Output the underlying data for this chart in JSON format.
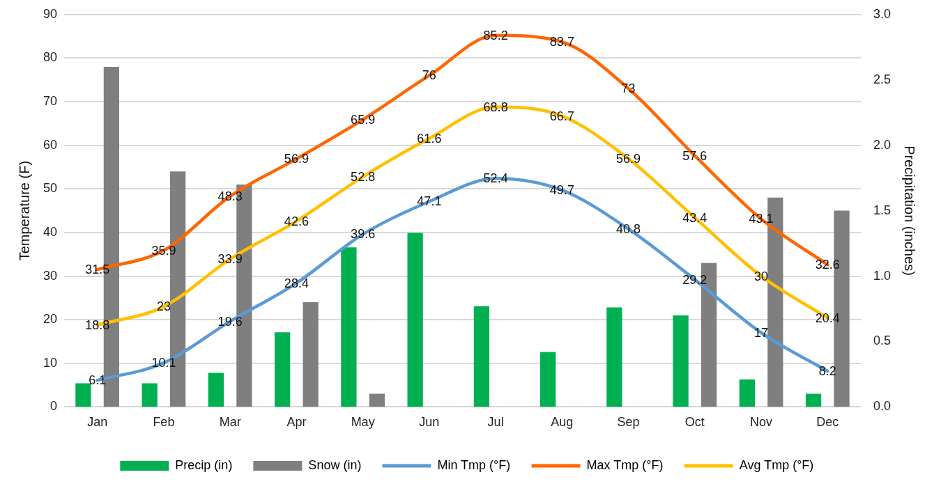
{
  "chart_data": {
    "type": "bar",
    "ylabel": "Temperature (F)",
    "y2label": "Precipitation (inches)",
    "categories": [
      "Jan",
      "Feb",
      "Mar",
      "Apr",
      "May",
      "Jun",
      "Jul",
      "Aug",
      "Sep",
      "Oct",
      "Nov",
      "Dec"
    ],
    "series": [
      {
        "name": "Precip (in)",
        "axis": "y2",
        "color": "#00b050",
        "values": [
          0.18,
          0.18,
          0.26,
          0.57,
          1.22,
          1.33,
          0.77,
          0.42,
          0.76,
          0.7,
          0.21,
          0.1
        ]
      },
      {
        "name": "Snow (in)",
        "axis": "y2",
        "color": "#7f7f7f",
        "values": [
          2.6,
          1.8,
          1.7,
          0.8,
          0.1,
          0,
          0,
          0,
          0,
          1.1,
          1.6,
          1.5
        ]
      },
      {
        "name": "Min Tmp (°F)",
        "type": "line",
        "axis": "y",
        "color": "#5b9bd5",
        "values": [
          6.1,
          10.1,
          19.6,
          28.4,
          39.6,
          47.1,
          52.4,
          49.7,
          40.8,
          29.2,
          17,
          8.2
        ],
        "value_labels": [
          "6.1",
          "10.1",
          "19.6",
          "28.4",
          "39.6",
          "47.1",
          "52.4",
          "49.7",
          "40.8",
          "29.2",
          "17",
          "8.2"
        ]
      },
      {
        "name": "Max Tmp (°F)",
        "type": "line",
        "axis": "y",
        "color": "#ff6600",
        "values": [
          31.5,
          35.9,
          48.3,
          56.9,
          65.9,
          76,
          85.2,
          83.7,
          73,
          57.6,
          43.1,
          32.6
        ],
        "value_labels": [
          "31.5",
          "35.9",
          "48.3",
          "56.9",
          "65.9",
          "76",
          "85.2",
          "83.7",
          "73",
          "57.6",
          "43.1",
          "32.6"
        ]
      },
      {
        "name": "Avg Tmp (°F)",
        "type": "line",
        "axis": "y",
        "color": "#ffc000",
        "values": [
          18.8,
          23,
          33.9,
          42.6,
          52.8,
          61.6,
          68.8,
          66.7,
          56.9,
          43.4,
          30,
          20.4
        ],
        "value_labels": [
          "18.8",
          "23",
          "33.9",
          "42.6",
          "52.8",
          "61.6",
          "68.8",
          "66.7",
          "56.9",
          "43.4",
          "30",
          "20.4"
        ]
      }
    ],
    "ylim": [
      0,
      90
    ],
    "yticks": [
      0,
      10,
      20,
      30,
      40,
      50,
      60,
      70,
      80,
      90
    ],
    "y2lim": [
      0,
      3
    ],
    "y2ticks": [
      {
        "value": 0,
        "label": "0.0"
      },
      {
        "value": 0.5,
        "label": "0.5"
      },
      {
        "value": 1,
        "label": "1.0"
      },
      {
        "value": 1.5,
        "label": "1.5"
      },
      {
        "value": 2,
        "label": "2.0"
      },
      {
        "value": 2.5,
        "label": "2.5"
      },
      {
        "value": 3,
        "label": "3.0"
      }
    ],
    "grid": "y",
    "legend": "bottom",
    "marker": "none"
  }
}
